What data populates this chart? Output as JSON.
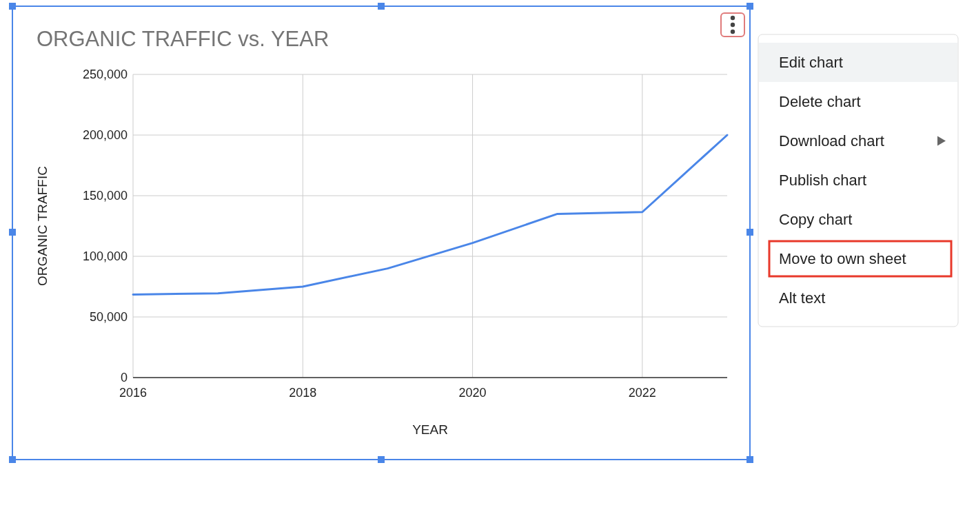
{
  "chart_data": {
    "type": "line",
    "title": "ORGANIC TRAFFIC vs. YEAR",
    "xlabel": "YEAR",
    "ylabel": "ORGANIC TRAFFIC",
    "x": [
      2016,
      2017,
      2018,
      2019,
      2020,
      2021,
      2022,
      2023
    ],
    "series": [
      {
        "color": "#4a86e8",
        "values": [
          68500,
          69500,
          75000,
          90000,
          111000,
          135000,
          136500,
          200000
        ]
      }
    ],
    "xlim": [
      2016,
      2023
    ],
    "xticks": [
      2016,
      2018,
      2020,
      2022
    ],
    "ylim": [
      0,
      250000
    ],
    "yticks": [
      {
        "value": 0,
        "label": "0"
      },
      {
        "value": 50000,
        "label": "50,000"
      },
      {
        "value": 100000,
        "label": "100,000"
      },
      {
        "value": 150000,
        "label": "150,000"
      },
      {
        "value": 200000,
        "label": "200,000"
      },
      {
        "value": 250000,
        "label": "250,000"
      }
    ],
    "grid": true,
    "marker": "none",
    "line_style": "solid",
    "annotations": [
      "Edit chart",
      "Delete chart",
      "Download chart",
      "Publish chart",
      "Copy chart",
      "Move to own sheet",
      "Alt text"
    ]
  }
}
